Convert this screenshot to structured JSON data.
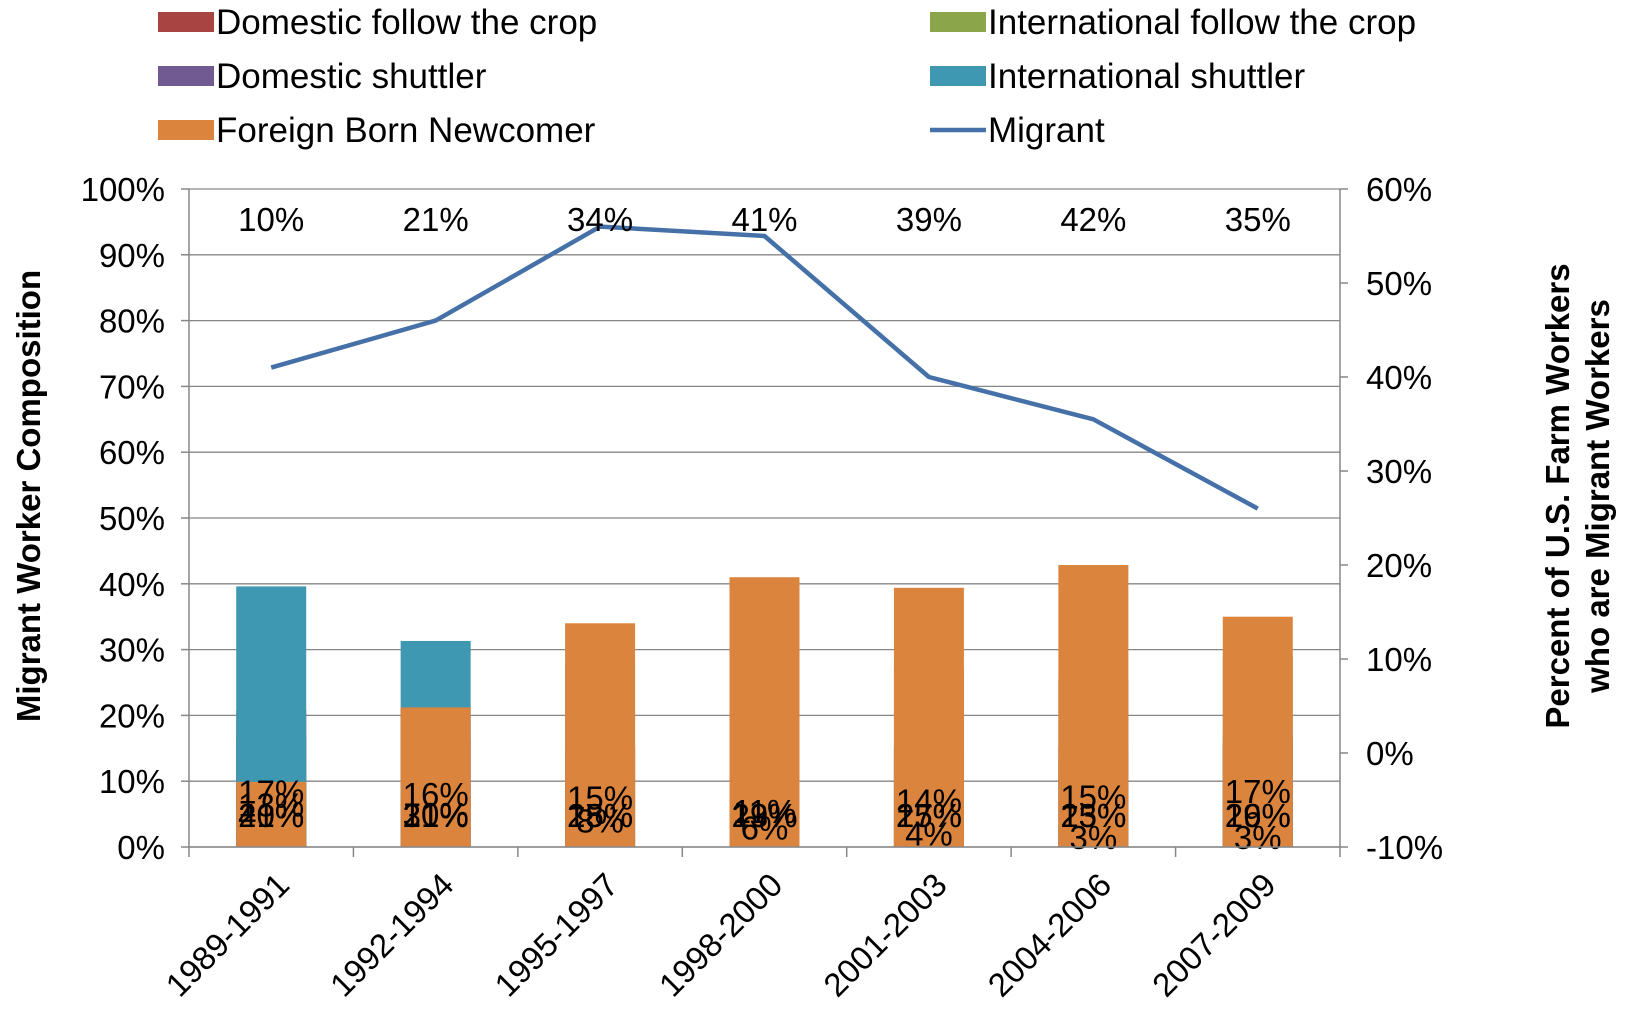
{
  "chart_data": {
    "type": "bar",
    "stacked": true,
    "categories": [
      "1989-1991",
      "1992-1994",
      "1995-1997",
      "1998-2000",
      "2001-2003",
      "2004-2006",
      "2007-2009"
    ],
    "series": [
      {
        "name": "Domestic follow the crop",
        "color": "#a84543",
        "values": [
          21,
          21,
          15,
          13,
          15,
          13,
          16
        ],
        "labels": [
          "21%",
          "21%",
          "15%",
          "13%",
          "15%",
          "13%",
          "16%"
        ]
      },
      {
        "name": "International follow the crop",
        "color": "#8aa54a",
        "values": [
          13,
          10,
          8,
          6,
          4,
          3,
          3
        ],
        "labels": [
          "13%",
          "10%",
          "8%",
          "6%",
          "4%",
          "3%",
          "3%"
        ]
      },
      {
        "name": "Domestic shuttler",
        "color": "#715a91",
        "values": [
          17,
          16,
          15,
          11,
          14,
          15,
          17
        ],
        "labels": [
          "17%",
          "16%",
          "15%",
          "11%",
          "14%",
          "15%",
          "17%"
        ]
      },
      {
        "name": "International shuttler",
        "color": "#3e98b1",
        "values": [
          40,
          31,
          28,
          29,
          27,
          25,
          29
        ],
        "labels": [
          "40%",
          "31%",
          "28%",
          "29%",
          "27%",
          "25%",
          "29%"
        ]
      },
      {
        "name": "Foreign Born Newcomer",
        "color": "#db843d",
        "values": [
          10,
          21,
          34,
          41,
          39,
          42,
          35
        ],
        "labels": [
          "10%",
          "21%",
          "34%",
          "41%",
          "39%",
          "42%",
          "35%"
        ]
      }
    ],
    "line_series": {
      "name": "Migrant",
      "color": "#4571a8",
      "axis": "right",
      "values": [
        41,
        46,
        56,
        55,
        40,
        35.5,
        26
      ]
    },
    "legend": {
      "placement": "top",
      "items": [
        {
          "name": "Domestic follow the crop",
          "color": "#a84543",
          "kind": "box"
        },
        {
          "name": "International follow the crop",
          "color": "#8aa54a",
          "kind": "box"
        },
        {
          "name": "Domestic shuttler",
          "color": "#715a91",
          "kind": "box"
        },
        {
          "name": "International shuttler",
          "color": "#3e98b1",
          "kind": "box"
        },
        {
          "name": "Foreign Born Newcomer",
          "color": "#db843d",
          "kind": "box"
        },
        {
          "name": "Migrant",
          "color": "#4571a8",
          "kind": "line"
        }
      ]
    },
    "ylabel": "Migrant Worker Composition",
    "y2label_line1": "Percent of U.S. Farm Workers",
    "y2label_line2": "who are Migrant Workers",
    "ylim": [
      0,
      100
    ],
    "y2lim": [
      -10,
      60
    ],
    "yticks": [
      "0%",
      "10%",
      "20%",
      "30%",
      "40%",
      "50%",
      "60%",
      "70%",
      "80%",
      "90%",
      "100%"
    ],
    "y2ticks": [
      "-10%",
      "0%",
      "10%",
      "20%",
      "30%",
      "40%",
      "50%",
      "60%"
    ],
    "grid": true,
    "gridcolor": "#878787"
  }
}
